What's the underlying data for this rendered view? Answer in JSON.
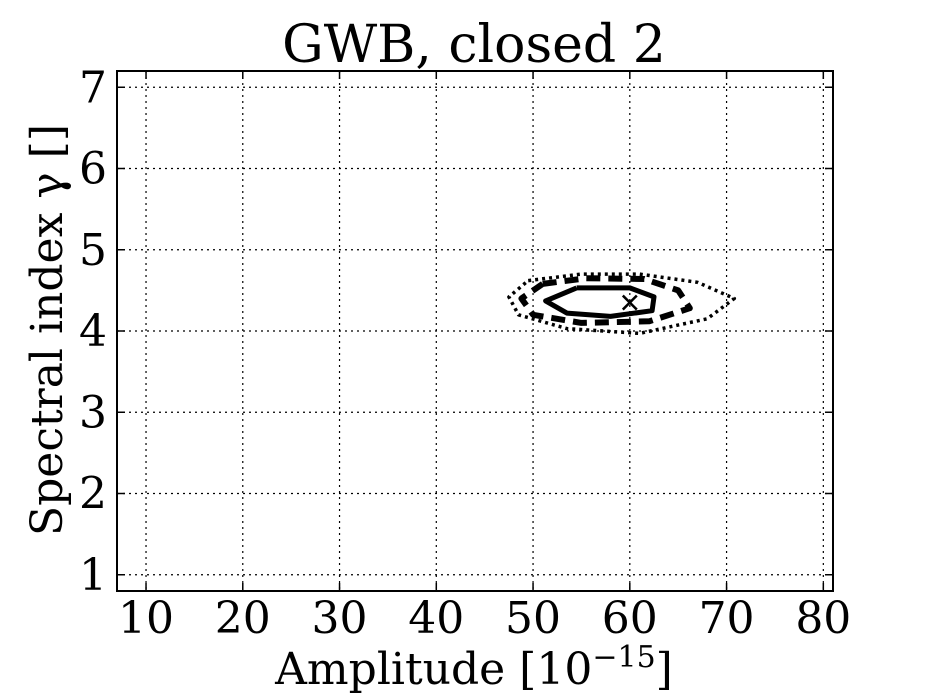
{
  "chart_data": {
    "type": "contour",
    "title": "GWB, closed 2",
    "xlabel": "Amplitude [10",
    "xlabel_exponent": "−15",
    "xlabel_suffix": "]",
    "ylabel": "Spectral index γ []",
    "xlim": [
      7,
      81
    ],
    "ylim": [
      0.8,
      7.2
    ],
    "xticks": [
      10,
      20,
      30,
      40,
      50,
      60,
      70,
      80
    ],
    "yticks": [
      1,
      2,
      3,
      4,
      5,
      6,
      7
    ],
    "grid": true,
    "contours": [
      {
        "style": "solid",
        "points": [
          [
            54.5,
            4.53
          ],
          [
            60.0,
            4.53
          ],
          [
            62.5,
            4.42
          ],
          [
            62.3,
            4.25
          ],
          [
            58.0,
            4.18
          ],
          [
            53.5,
            4.22
          ],
          [
            51.3,
            4.37
          ],
          [
            54.5,
            4.53
          ]
        ]
      },
      {
        "style": "dashed",
        "points": [
          [
            51.0,
            4.58
          ],
          [
            55.5,
            4.65
          ],
          [
            61.5,
            4.64
          ],
          [
            65.0,
            4.5
          ],
          [
            66.2,
            4.28
          ],
          [
            62.0,
            4.12
          ],
          [
            55.0,
            4.1
          ],
          [
            50.0,
            4.2
          ],
          [
            48.8,
            4.4
          ],
          [
            51.0,
            4.58
          ]
        ]
      },
      {
        "style": "dotted",
        "points": [
          [
            49.5,
            4.62
          ],
          [
            55.0,
            4.7
          ],
          [
            61.0,
            4.7
          ],
          [
            67.0,
            4.6
          ],
          [
            70.8,
            4.4
          ],
          [
            68.0,
            4.15
          ],
          [
            61.0,
            3.97
          ],
          [
            53.5,
            4.03
          ],
          [
            48.5,
            4.2
          ],
          [
            47.5,
            4.42
          ],
          [
            49.5,
            4.62
          ]
        ]
      }
    ],
    "marker": {
      "symbol": "x",
      "x": 60.0,
      "y": 4.35
    }
  }
}
